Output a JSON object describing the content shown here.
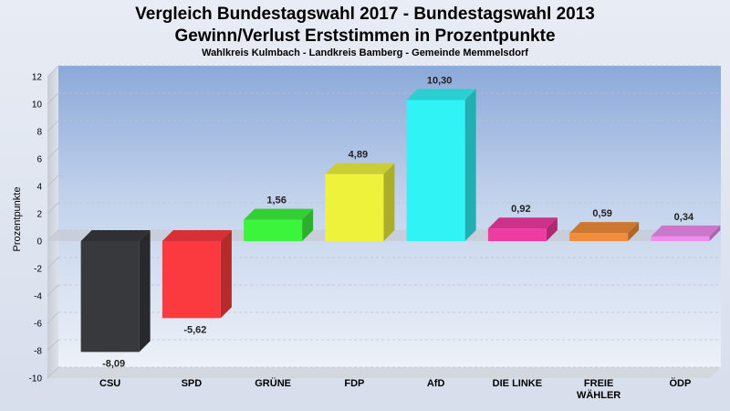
{
  "chart_data": {
    "type": "bar",
    "title_line1": "Vergleich Bundestagswahl 2017 - Bundestagswahl 2013",
    "title_line2": "Gewinn/Verlust Erststimmen in Prozentpunkte",
    "subtitle": "Wahlkreis Kulmbach - Landkreis Bamberg - Gemeinde Memmelsdorf",
    "ylabel": "Prozentpunkte",
    "xlabel": "",
    "ylim": [
      -10,
      12
    ],
    "yticks": [
      12,
      10,
      8,
      6,
      4,
      2,
      0,
      -2,
      -4,
      -6,
      -8,
      -10
    ],
    "categories": [
      "CSU",
      "SPD",
      "GRÜNE",
      "FDP",
      "AfD",
      "DIE LINKE",
      "FREIE WÄHLER",
      "ÖDP"
    ],
    "category_lines": [
      [
        "CSU"
      ],
      [
        "SPD"
      ],
      [
        "GRÜNE"
      ],
      [
        "FDP"
      ],
      [
        "AfD"
      ],
      [
        "DIE LINKE"
      ],
      [
        "FREIE",
        "WÄHLER"
      ],
      [
        "ÖDP"
      ]
    ],
    "values": [
      -8.09,
      -5.62,
      1.56,
      4.89,
      10.3,
      0.92,
      0.59,
      0.34
    ],
    "value_labels": [
      "-8,09",
      "-5,62",
      "1,56",
      "4,89",
      "10,30",
      "0,92",
      "0,59",
      "0,34"
    ],
    "colors": [
      "#37393d",
      "#fb3a3f",
      "#3df43d",
      "#eff23b",
      "#30f3f6",
      "#f03ba0",
      "#f18d3b",
      "#ef8cf0"
    ],
    "grid": true,
    "legend": "none"
  }
}
